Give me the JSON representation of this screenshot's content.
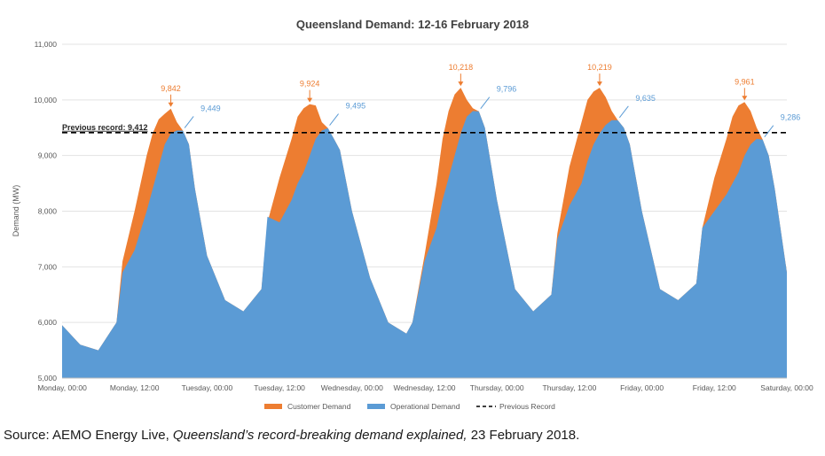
{
  "chart_data": {
    "type": "area",
    "title": "Queensland Demand: 12-16 February 2018",
    "ylabel": "Demand (MW)",
    "xlabel": "",
    "ylim": [
      5000,
      11000
    ],
    "y_ticks": [
      "5,000",
      "6,000",
      "7,000",
      "8,000",
      "9,000",
      "10,000",
      "11,000"
    ],
    "x_ticks": [
      "Monday, 00:00",
      "Monday, 12:00",
      "Tuesday, 00:00",
      "Tuesday, 12:00",
      "Wednesday, 00:00",
      "Wednesday, 12:00",
      "Thursday, 00:00",
      "Thursday, 12:00",
      "Friday, 00:00",
      "Friday, 12:00",
      "Saturday, 00:00"
    ],
    "x_unit": "hours from Monday, 00:00",
    "legend_position": "bottom",
    "colors": {
      "customer": "#ED7D31",
      "operational": "#5B9BD5",
      "record": "#000000"
    },
    "series": [
      {
        "name": "Customer Demand",
        "x": [
          0,
          3,
          6,
          9,
          10,
          12,
          14,
          15,
          16,
          17,
          18,
          19,
          20,
          21,
          22,
          24,
          27,
          30,
          33,
          34,
          36,
          38,
          39,
          40,
          41,
          42,
          43,
          44,
          45,
          46,
          48,
          51,
          54,
          57,
          58,
          60,
          62,
          63,
          64,
          65,
          66,
          67,
          68,
          69,
          70,
          72,
          75,
          78,
          81,
          82,
          84,
          86,
          87,
          88,
          89,
          90,
          91,
          92,
          93,
          94,
          96,
          99,
          102,
          105,
          106,
          108,
          110,
          111,
          112,
          113,
          114,
          115,
          116,
          117,
          118,
          120
        ],
        "values": [
          5950,
          5600,
          5500,
          6000,
          7100,
          8000,
          9000,
          9400,
          9650,
          9750,
          9842,
          9600,
          9449,
          9200,
          8400,
          7200,
          6400,
          6200,
          6600,
          7800,
          8600,
          9300,
          9700,
          9850,
          9924,
          9900,
          9600,
          9495,
          9300,
          9100,
          8000,
          6800,
          6000,
          5800,
          6000,
          7200,
          8500,
          9300,
          9800,
          10100,
          10218,
          10000,
          9850,
          9796,
          9500,
          8200,
          6600,
          6200,
          6500,
          7600,
          8800,
          9600,
          10000,
          10150,
          10219,
          10050,
          9800,
          9635,
          9500,
          9200,
          8000,
          6600,
          6400,
          6700,
          7700,
          8600,
          9300,
          9700,
          9900,
          9961,
          9800,
          9500,
          9286,
          9000,
          8400,
          6900
        ]
      },
      {
        "name": "Operational Demand",
        "x": [
          0,
          3,
          6,
          9,
          10,
          12,
          14,
          15,
          16,
          17,
          18,
          19,
          20,
          21,
          22,
          24,
          27,
          30,
          33,
          34,
          36,
          38,
          39,
          40,
          41,
          42,
          43,
          44,
          45,
          46,
          48,
          51,
          54,
          57,
          58,
          60,
          62,
          63,
          64,
          65,
          66,
          67,
          68,
          69,
          70,
          72,
          75,
          78,
          81,
          82,
          84,
          86,
          87,
          88,
          89,
          90,
          91,
          92,
          93,
          94,
          96,
          99,
          102,
          105,
          106,
          108,
          110,
          111,
          112,
          113,
          114,
          115,
          116,
          117,
          118,
          120
        ],
        "values": [
          5950,
          5600,
          5500,
          6000,
          6900,
          7300,
          8000,
          8400,
          8800,
          9200,
          9400,
          9450,
          9449,
          9200,
          8400,
          7200,
          6400,
          6200,
          6600,
          7900,
          7800,
          8200,
          8500,
          8700,
          9000,
          9300,
          9450,
          9495,
          9300,
          9100,
          8000,
          6800,
          6000,
          5800,
          6000,
          7100,
          7700,
          8200,
          8600,
          9000,
          9400,
          9700,
          9800,
          9796,
          9500,
          8200,
          6600,
          6200,
          6500,
          7500,
          8100,
          8500,
          8900,
          9200,
          9400,
          9550,
          9635,
          9635,
          9500,
          9200,
          8000,
          6600,
          6400,
          6700,
          7700,
          8000,
          8300,
          8500,
          8700,
          9000,
          9200,
          9300,
          9286,
          9000,
          8400,
          6900
        ]
      },
      {
        "name": "Previous Record",
        "value": 9412
      }
    ],
    "annotations": {
      "record_label": "Previous record: 9,412",
      "customer_peaks": [
        {
          "x": 18,
          "y": 9842,
          "label": "9,842"
        },
        {
          "x": 41,
          "y": 9924,
          "label": "9,924"
        },
        {
          "x": 66,
          "y": 10218,
          "label": "10,218"
        },
        {
          "x": 89,
          "y": 10219,
          "label": "10,219"
        },
        {
          "x": 113,
          "y": 9961,
          "label": "9,961"
        }
      ],
      "operational_peaks": [
        {
          "x": 20,
          "y": 9449,
          "label": "9,449"
        },
        {
          "x": 44,
          "y": 9495,
          "label": "9,495"
        },
        {
          "x": 69,
          "y": 9796,
          "label": "9,796"
        },
        {
          "x": 92,
          "y": 9635,
          "label": "9,635"
        },
        {
          "x": 116,
          "y": 9286,
          "label": "9,286"
        }
      ]
    }
  },
  "source": {
    "prefix": "Source: AEMO Energy Live, ",
    "italic": "Queensland’s record-breaking demand explained,",
    "suffix": " 23 February 2018."
  }
}
